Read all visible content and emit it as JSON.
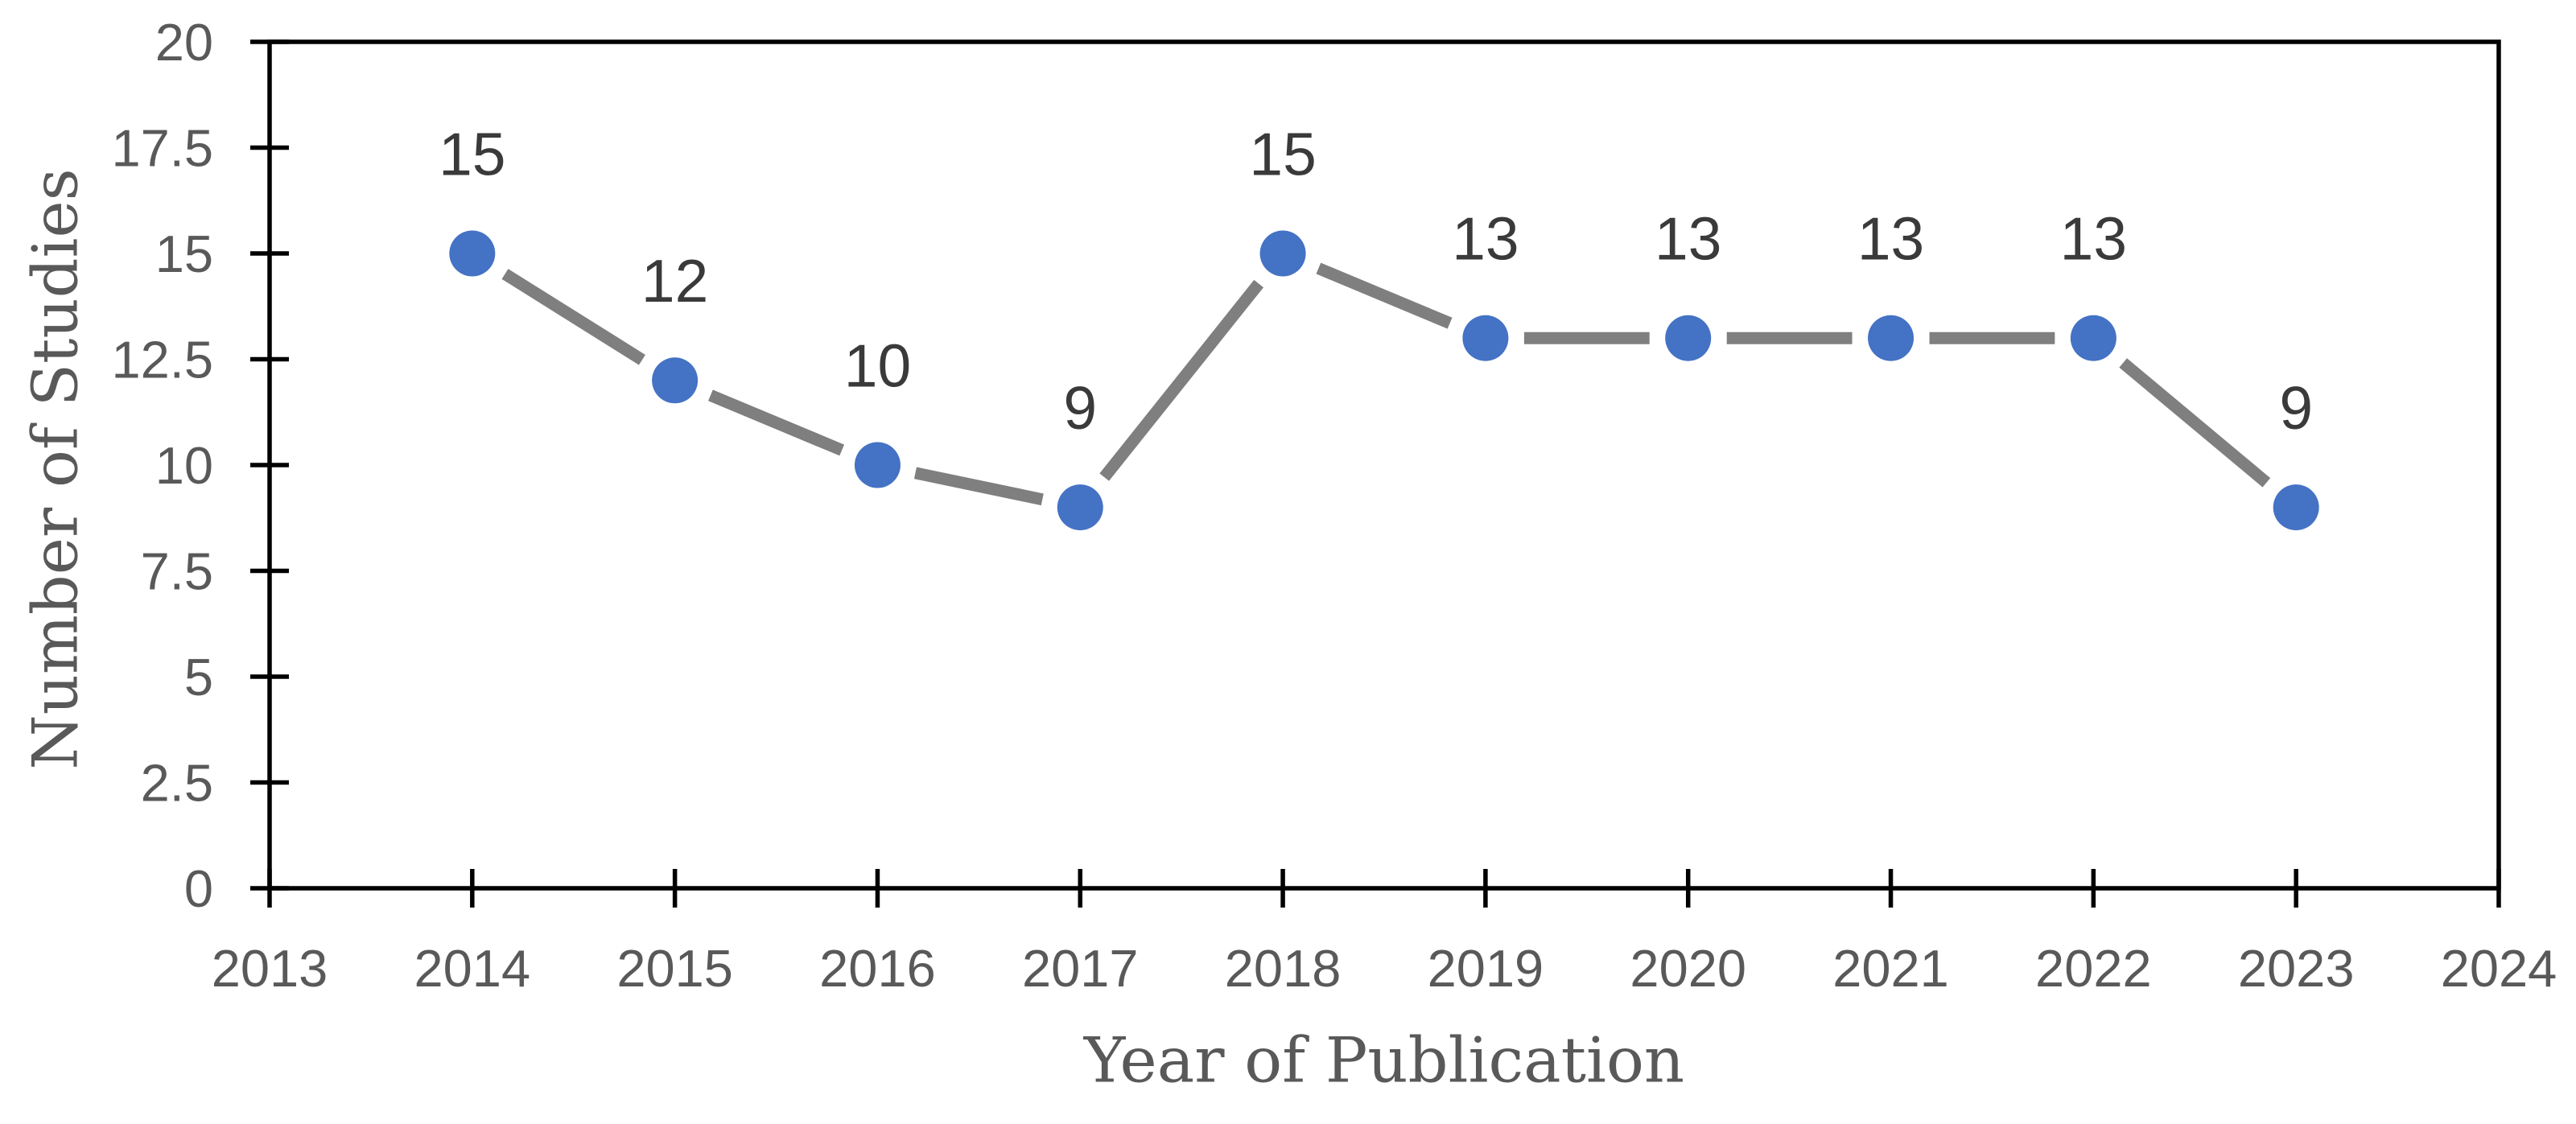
{
  "chart_data": {
    "type": "line",
    "title": "",
    "xlabel": "Year of Publication",
    "ylabel": "Number of Studies",
    "x": [
      2014,
      2015,
      2016,
      2017,
      2018,
      2019,
      2020,
      2021,
      2022,
      2023
    ],
    "values": [
      15,
      12,
      10,
      9,
      15,
      13,
      13,
      13,
      13,
      9
    ],
    "data_labels": [
      "15",
      "12",
      "10",
      "9",
      "15",
      "13",
      "13",
      "13",
      "13",
      "9"
    ],
    "xlim": [
      2013,
      2024
    ],
    "ylim": [
      0,
      20
    ],
    "x_ticks": [
      2013,
      2014,
      2015,
      2016,
      2017,
      2018,
      2019,
      2020,
      2021,
      2022,
      2023,
      2024
    ],
    "x_tick_labels": [
      "2013",
      "2014",
      "2015",
      "2016",
      "2017",
      "2018",
      "2019",
      "2020",
      "2021",
      "2022",
      "2023",
      "2024"
    ],
    "y_ticks": [
      0,
      2.5,
      5,
      7.5,
      10,
      12.5,
      15,
      17.5,
      20
    ],
    "y_tick_labels": [
      "0",
      "2.5",
      "5",
      "7.5",
      "10",
      "12.5",
      "15",
      "17.5",
      "20"
    ],
    "grid": false,
    "legend": null,
    "marker_shape": "circle",
    "colors": {
      "marker": "#4472C4",
      "line": "#7F7F7F",
      "data_label": "#3A3A3A",
      "tick_label": "#595959",
      "axis_title": "#595959",
      "spine": "#000000",
      "background": "#FFFFFF"
    }
  }
}
